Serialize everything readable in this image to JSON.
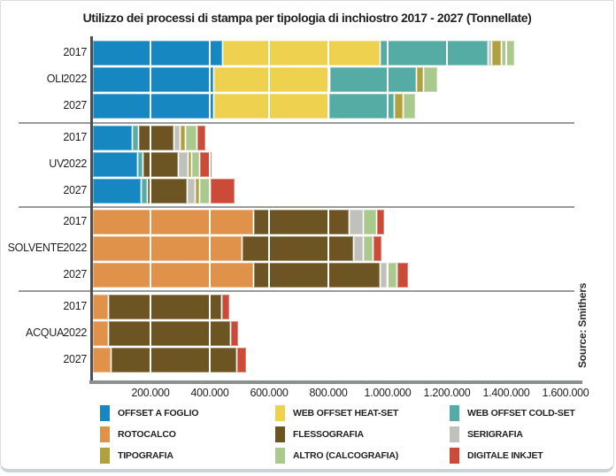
{
  "title": "Utilizzo dei processi di stampa per tipologia di inchiostro 2017 - 2027 (Tonnellate)",
  "source": "Source: Smithers",
  "axis": {
    "tick_labels": [
      "200.000",
      "400.000",
      "600.000",
      "800.000",
      "1.000.000",
      "1.200.000",
      "1.400.000",
      "1.600.000"
    ],
    "min": 0,
    "max": 1600000
  },
  "chart_data": {
    "type": "bar",
    "orientation": "horizontal",
    "stacked": true,
    "title": "Utilizzo dei processi di stampa per tipologia di inchiostro 2017 - 2027 (Tonnellate)",
    "unit": "Tonnellate",
    "xlim": [
      0,
      1600000
    ],
    "xticks": [
      200000,
      400000,
      600000,
      800000,
      1000000,
      1200000,
      1400000,
      1600000
    ],
    "legend_position": "bottom",
    "gridlines": true,
    "groups": [
      "OLI",
      "UV",
      "SOLVENTE",
      "ACQUA"
    ],
    "years": [
      "2017",
      "2022",
      "2027"
    ],
    "series_keys": [
      {
        "key": "offset_a_foglio",
        "label": "OFFSET A FOGLIO",
        "color": "#1687c1"
      },
      {
        "key": "web_offset_heat_set",
        "label": "WEB OFFSET HEAT-SET",
        "color": "#eed24f"
      },
      {
        "key": "web_offset_cold_set",
        "label": "WEB OFFSET COLD-SET",
        "color": "#55aca4"
      },
      {
        "key": "rotocalco",
        "label": "ROTOCALCO",
        "color": "#e0914a"
      },
      {
        "key": "flessografia",
        "label": "FLESSOGRAFIA",
        "color": "#6d5423"
      },
      {
        "key": "serigrafia",
        "label": "SERIGRAFIA",
        "color": "#c0c1bc"
      },
      {
        "key": "tipografia",
        "label": "TIPOGRAFIA",
        "color": "#b0a03e"
      },
      {
        "key": "altro_calcografia",
        "label": "ALTRO (CALCOGRAFIA)",
        "color": "#a9ca8c"
      },
      {
        "key": "digitale_inkjet",
        "label": "DIGITALE INKJET",
        "color": "#cb4a38"
      }
    ],
    "rows": [
      {
        "group": "OLI",
        "year": "2017",
        "values": {
          "offset_a_foglio": 435000,
          "web_offset_heat_set": 530000,
          "web_offset_cold_set": 360000,
          "serigrafia": 10000,
          "tipografia": 30000,
          "altro_calcografia": 40000
        }
      },
      {
        "group": "OLI",
        "year": "2022",
        "values": {
          "offset_a_foglio": 405000,
          "web_offset_heat_set": 390000,
          "web_offset_cold_set": 290000,
          "tipografia": 20000,
          "altro_calcografia": 45000
        }
      },
      {
        "group": "OLI",
        "year": "2027",
        "values": {
          "offset_a_foglio": 405000,
          "web_offset_heat_set": 385000,
          "web_offset_cold_set": 220000,
          "tipografia": 25000,
          "altro_calcografia": 40000
        }
      },
      {
        "group": "UV",
        "year": "2017",
        "values": {
          "offset_a_foglio": 130000,
          "web_offset_cold_set": 20000,
          "flessografia": 115000,
          "serigrafia": 20000,
          "tipografia": 15000,
          "altro_calcografia": 35000,
          "digitale_inkjet": 25000
        }
      },
      {
        "group": "UV",
        "year": "2022",
        "values": {
          "offset_a_foglio": 150000,
          "web_offset_cold_set": 15000,
          "flessografia": 115000,
          "serigrafia": 30000,
          "tipografia": 8000,
          "altro_calcografia": 25000,
          "digitale_inkjet": 40000
        }
      },
      {
        "group": "UV",
        "year": "2027",
        "values": {
          "offset_a_foglio": 160000,
          "web_offset_cold_set": 20000,
          "flessografia": 130000,
          "serigrafia": 25000,
          "tipografia": 10000,
          "altro_calcografia": 35000,
          "digitale_inkjet": 80000
        }
      },
      {
        "group": "SOLVENTE",
        "year": "2017",
        "values": {
          "rotocalco": 540000,
          "flessografia": 320000,
          "serigrafia": 45000,
          "altro_calcografia": 40000,
          "digitale_inkjet": 25000
        }
      },
      {
        "group": "SOLVENTE",
        "year": "2022",
        "values": {
          "rotocalco": 500000,
          "flessografia": 375000,
          "serigrafia": 30000,
          "altro_calcografia": 30000,
          "digitale_inkjet": 25000
        }
      },
      {
        "group": "SOLVENTE",
        "year": "2027",
        "values": {
          "rotocalco": 540000,
          "flessografia": 425000,
          "serigrafia": 20000,
          "altro_calcografia": 30000,
          "digitale_inkjet": 35000
        }
      },
      {
        "group": "ACQUA",
        "year": "2017",
        "values": {
          "rotocalco": 50000,
          "flessografia": 380000,
          "digitale_inkjet": 25000
        }
      },
      {
        "group": "ACQUA",
        "year": "2022",
        "values": {
          "rotocalco": 50000,
          "flessografia": 410000,
          "digitale_inkjet": 25000
        }
      },
      {
        "group": "ACQUA",
        "year": "2027",
        "values": {
          "rotocalco": 60000,
          "flessografia": 420000,
          "digitale_inkjet": 30000
        }
      }
    ],
    "source": "Source: Smithers"
  }
}
